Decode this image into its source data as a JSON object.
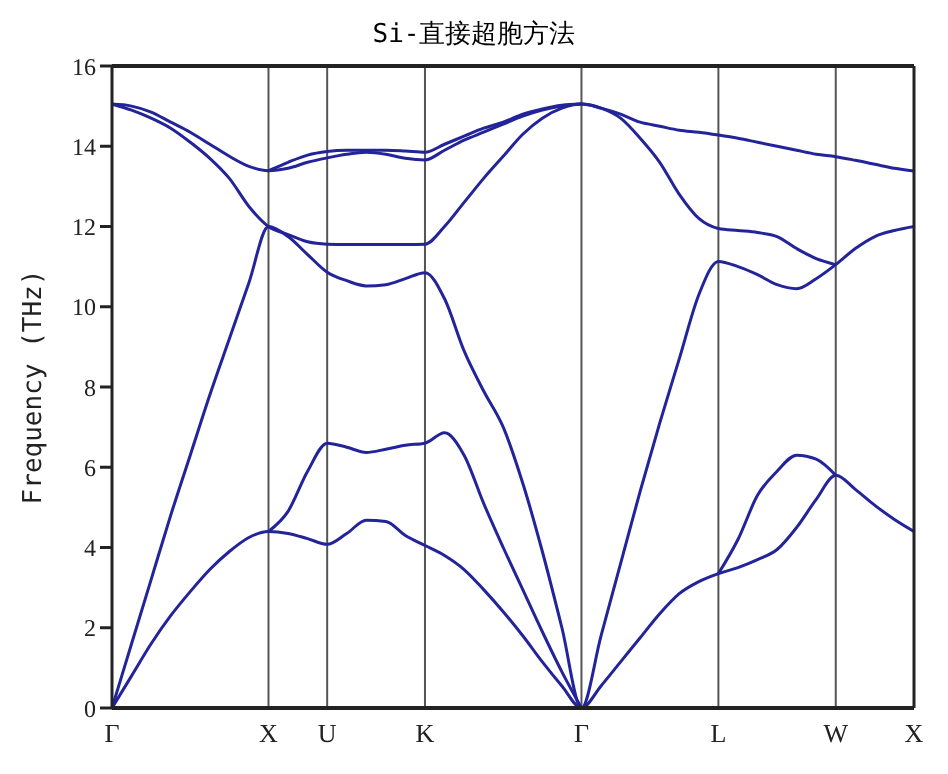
{
  "chart_data": {
    "type": "line",
    "title": "Si-直接超胞方法",
    "ylabel": "Frequency (THz)",
    "categories": [
      "Γ",
      null,
      null,
      null,
      null,
      null,
      null,
      null,
      "X",
      null,
      null,
      "U",
      null,
      null,
      null,
      null,
      "K",
      null,
      null,
      null,
      null,
      null,
      null,
      null,
      "Γ",
      null,
      null,
      null,
      null,
      null,
      null,
      "L",
      null,
      null,
      null,
      null,
      null,
      "W",
      null,
      null,
      null,
      "X"
    ],
    "ylim": [
      0,
      16
    ],
    "yticks": [
      0,
      2,
      4,
      6,
      8,
      10,
      12,
      14,
      16
    ],
    "grid": "x",
    "marker": "none",
    "line_style": "solid",
    "series": [
      {
        "color": "#23239a",
        "values": [
          0,
          0.8,
          1.6,
          2.3,
          2.9,
          3.45,
          3.9,
          4.25,
          4.4,
          4.35,
          4.22,
          4.08,
          4.35,
          4.68,
          4.65,
          4.3,
          4.05,
          3.8,
          3.45,
          2.95,
          2.4,
          1.8,
          1.15,
          0.55,
          0,
          0.55,
          1.15,
          1.75,
          2.35,
          2.85,
          3.15,
          3.35,
          3.5,
          3.7,
          3.95,
          4.5,
          5.2,
          5.8,
          5.45,
          5.05,
          4.7,
          4.4
        ]
      },
      {
        "color": "#23239a",
        "values": [
          null,
          null,
          null,
          null,
          null,
          null,
          null,
          null,
          4.4,
          4.9,
          5.9,
          6.6,
          6.5,
          6.37,
          6.45,
          6.55,
          6.6,
          6.86,
          6.3,
          5.1,
          4.0,
          2.95,
          1.9,
          0.9,
          0,
          null,
          null,
          null,
          null,
          null,
          null,
          3.35,
          4.2,
          5.3,
          5.9,
          6.3,
          6.2,
          5.8,
          null,
          null,
          null,
          null
        ]
      },
      {
        "color": "#23239a",
        "values": [
          0,
          1.6,
          3.2,
          4.8,
          6.3,
          7.8,
          9.2,
          10.6,
          12.0,
          11.75,
          11.3,
          10.86,
          10.65,
          10.52,
          10.55,
          10.7,
          10.85,
          10.2,
          8.9,
          7.9,
          7.0,
          5.6,
          3.9,
          2.0,
          0,
          1.8,
          3.6,
          5.4,
          7.1,
          8.7,
          10.3,
          11.13,
          11.0,
          10.8,
          10.55,
          10.45,
          10.7,
          11.05,
          11.45,
          11.75,
          11.9,
          12.0
        ]
      },
      {
        "color": "#23239a",
        "values": [
          15.05,
          14.9,
          14.7,
          14.45,
          14.1,
          13.7,
          13.2,
          12.5,
          12.0,
          11.8,
          11.62,
          11.56,
          11.55,
          11.55,
          11.55,
          11.55,
          11.56,
          12.0,
          12.6,
          13.2,
          13.75,
          14.3,
          14.7,
          14.95,
          15.05,
          14.95,
          14.7,
          14.2,
          13.6,
          12.8,
          12.2,
          11.95,
          11.9,
          11.85,
          11.75,
          11.45,
          11.2,
          11.05,
          null,
          null,
          null,
          null
        ]
      },
      {
        "color": "#23239a",
        "values": [
          15.05,
          15.0,
          14.85,
          14.6,
          14.35,
          14.05,
          13.75,
          13.5,
          13.39,
          13.45,
          13.6,
          13.71,
          13.8,
          13.85,
          13.8,
          13.7,
          13.66,
          13.9,
          14.15,
          14.35,
          14.55,
          14.75,
          14.9,
          15.0,
          15.05,
          14.95,
          14.8,
          14.6,
          14.5,
          14.4,
          14.35,
          14.28,
          14.2,
          14.1,
          14.0,
          13.9,
          13.8,
          13.74,
          13.65,
          13.55,
          13.45,
          13.38
        ]
      },
      {
        "color": "#23239a",
        "values": [
          null,
          null,
          null,
          null,
          null,
          null,
          null,
          null,
          13.39,
          13.6,
          13.78,
          13.87,
          13.9,
          13.9,
          13.9,
          13.88,
          13.85,
          14.05,
          14.25,
          14.45,
          14.6,
          14.8,
          14.93,
          15.02,
          15.05,
          null,
          null,
          null,
          null,
          null,
          null,
          null,
          null,
          null,
          null,
          null,
          null,
          null,
          null,
          null,
          null,
          null
        ]
      }
    ]
  }
}
